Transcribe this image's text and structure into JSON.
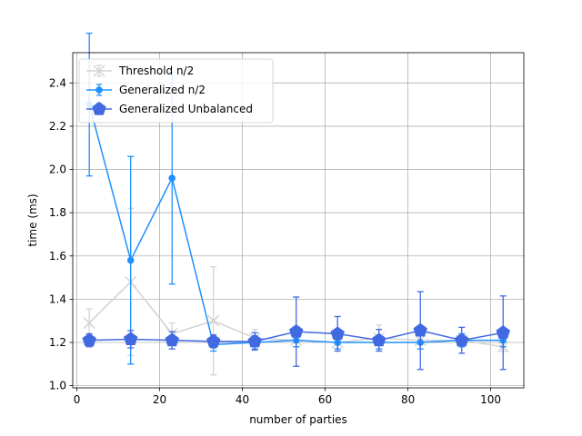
{
  "chart_data": {
    "type": "line",
    "xlabel": "number of parties",
    "ylabel": "time (ms)",
    "xlim": [
      -1,
      108
    ],
    "ylim": [
      0.99,
      2.54
    ],
    "x_ticks": [
      0,
      20,
      40,
      60,
      80,
      100
    ],
    "y_ticks": [
      1.0,
      1.2,
      1.4,
      1.6,
      1.8,
      2.0,
      2.2,
      2.4
    ],
    "x_tick_labels": [
      "0",
      "20",
      "40",
      "60",
      "80",
      "100"
    ],
    "y_tick_labels": [
      "1.0",
      "1.2",
      "1.4",
      "1.6",
      "1.8",
      "2.0",
      "2.2",
      "2.4"
    ],
    "grid": true,
    "legend_position": "top-left",
    "x": [
      3,
      13,
      23,
      33,
      43,
      53,
      63,
      73,
      83,
      93,
      103
    ],
    "series": [
      {
        "name": "Threshold n/2",
        "color": "#d3d3d3",
        "marker": "x",
        "values": [
          1.29,
          1.48,
          1.24,
          1.3,
          1.22,
          1.21,
          1.2,
          1.22,
          1.21,
          1.21,
          1.18
        ],
        "errors": [
          0.065,
          0.34,
          0.05,
          0.25,
          0.04,
          0.03,
          0.03,
          0.06,
          0.04,
          0.03,
          0.02
        ]
      },
      {
        "name": "Generalized n/2",
        "color": "#1e90ff",
        "marker": "circle",
        "values": [
          2.3,
          1.58,
          1.96,
          1.19,
          1.2,
          1.21,
          1.2,
          1.2,
          1.2,
          1.21,
          1.21
        ],
        "errors": [
          0.33,
          0.48,
          0.49,
          0.03,
          0.03,
          0.03,
          0.03,
          0.03,
          0.03,
          0.03,
          0.03
        ]
      },
      {
        "name": "Generalized Unbalanced",
        "color": "#4169e1",
        "marker": "pentagon",
        "values": [
          1.21,
          1.215,
          1.21,
          1.205,
          1.205,
          1.25,
          1.24,
          1.21,
          1.255,
          1.21,
          1.245
        ],
        "errors": [
          0.03,
          0.04,
          0.04,
          0.03,
          0.04,
          0.16,
          0.08,
          0.05,
          0.18,
          0.06,
          0.17
        ]
      }
    ]
  }
}
